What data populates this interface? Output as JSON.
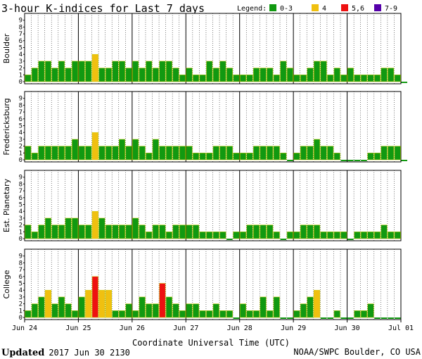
{
  "chart_data": {
    "type": "bar",
    "title": "3-hour K-indices for Last 7 days",
    "legend": {
      "label": "Legend:",
      "entries": [
        {
          "label": "0-3",
          "color": "#119911"
        },
        {
          "label": "4",
          "color": "#f0c010"
        },
        {
          "label": "5,6",
          "color": "#ee1111"
        },
        {
          "label": "7-9",
          "color": "#5500aa"
        }
      ],
      "placement": "top-right"
    },
    "ylim": [
      0,
      9
    ],
    "y_ticks": [
      "0",
      "1",
      "2",
      "3",
      "4",
      "5",
      "6",
      "7",
      "8",
      "9"
    ],
    "x_ticks": [
      "Jun 24",
      "Jun 25",
      "Jun 26",
      "Jun 27",
      "Jun 28",
      "Jun 29",
      "Jun 30",
      "Jul 01"
    ],
    "xlabel": "Coordinate Universal Time (UTC)",
    "grid": "dotted vertical at 3-hour intervals",
    "bars_per_day": 8,
    "panels": [
      {
        "name": "Boulder",
        "values": [
          1,
          2,
          3,
          3,
          2,
          3,
          2,
          3,
          3,
          3,
          4,
          2,
          2,
          3,
          3,
          2,
          3,
          2,
          3,
          2,
          3,
          3,
          2,
          1,
          2,
          1,
          1,
          3,
          2,
          3,
          2,
          1,
          1,
          1,
          2,
          2,
          2,
          1,
          3,
          2,
          1,
          1,
          2,
          3,
          3,
          1,
          2,
          1,
          2,
          1,
          1,
          1,
          1,
          2,
          2,
          1,
          0
        ]
      },
      {
        "name": "Fredericksburg",
        "values": [
          2,
          1,
          2,
          2,
          2,
          2,
          2,
          3,
          2,
          2,
          4,
          2,
          2,
          2,
          3,
          2,
          3,
          2,
          1,
          3,
          2,
          2,
          2,
          2,
          2,
          1,
          1,
          1,
          2,
          2,
          2,
          1,
          1,
          1,
          2,
          2,
          2,
          2,
          1,
          0,
          1,
          2,
          2,
          3,
          2,
          2,
          1,
          0,
          0,
          0,
          0,
          1,
          1,
          2,
          2,
          2,
          0
        ]
      },
      {
        "name": "Est. Planetary",
        "values": [
          2,
          1,
          2,
          3,
          2,
          2,
          3,
          3,
          2,
          2,
          4,
          3,
          2,
          2,
          2,
          2,
          3,
          2,
          1,
          2,
          2,
          1,
          2,
          2,
          2,
          2,
          1,
          1,
          1,
          1,
          0,
          1,
          1,
          2,
          2,
          2,
          2,
          1,
          0,
          1,
          1,
          2,
          2,
          2,
          1,
          1,
          1,
          1,
          0,
          1,
          1,
          1,
          1,
          2,
          1,
          1
        ]
      },
      {
        "name": "College",
        "values": [
          1,
          2,
          3,
          4,
          2,
          3,
          2,
          1,
          3,
          4,
          6,
          4,
          4,
          1,
          1,
          2,
          1,
          3,
          2,
          2,
          5,
          3,
          2,
          1,
          2,
          2,
          1,
          1,
          2,
          1,
          1,
          0,
          2,
          1,
          1,
          3,
          1,
          3,
          0,
          0,
          1,
          2,
          3,
          4,
          0,
          0,
          1,
          0,
          0,
          1,
          1,
          2,
          0,
          0,
          0,
          0
        ]
      }
    ]
  },
  "footer": {
    "updated_label": "Updated",
    "updated_value": "2017 Jun 30 2130",
    "source": "NOAA/SWPC Boulder, CO USA"
  }
}
